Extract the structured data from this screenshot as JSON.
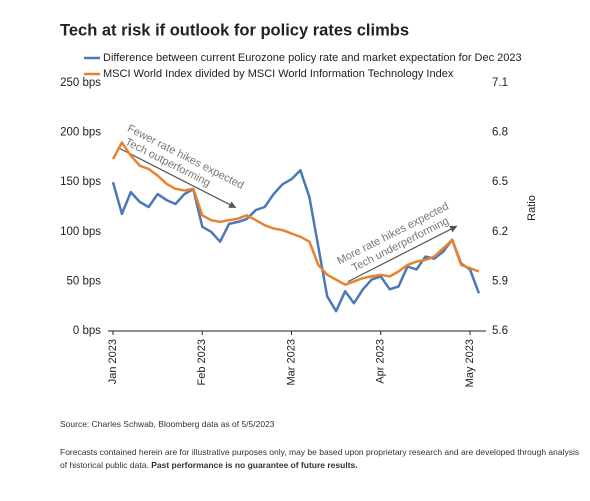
{
  "chart_data": {
    "type": "line",
    "title": "Tech at risk if outlook for policy rates climbs",
    "categories": [
      "Jan 2023",
      null,
      null,
      null,
      null,
      null,
      null,
      null,
      null,
      null,
      "Feb 2023",
      null,
      null,
      null,
      null,
      null,
      null,
      null,
      null,
      null,
      "Mar 2023",
      null,
      null,
      null,
      null,
      null,
      null,
      null,
      null,
      null,
      "Apr 2023",
      null,
      null,
      null,
      null,
      null,
      null,
      null,
      null,
      null,
      "May 2023",
      null
    ],
    "series": [
      {
        "name": "Difference between current Eurozone policy rate and market expectation for Dec 2023",
        "color": "#4a78b8",
        "values": [
          150,
          118,
          140,
          130,
          125,
          138,
          132,
          128,
          138,
          143,
          105,
          100,
          90,
          108,
          110,
          113,
          122,
          125,
          138,
          148,
          153,
          162,
          135,
          85,
          35,
          20,
          40,
          28,
          42,
          52,
          55,
          42,
          45,
          65,
          62,
          75,
          73,
          80,
          92,
          68,
          62,
          38
        ]
      },
      {
        "name": "MSCI World Index divided by MSCI World Information Technology Index",
        "color": "#e8822e",
        "axis": "y2",
        "values": [
          6.64,
          6.74,
          6.66,
          6.6,
          6.58,
          6.54,
          6.49,
          6.46,
          6.45,
          6.46,
          6.3,
          6.27,
          6.26,
          6.27,
          6.28,
          6.3,
          6.27,
          6.24,
          6.22,
          6.21,
          6.19,
          6.17,
          6.14,
          6.0,
          5.94,
          5.91,
          5.88,
          5.9,
          5.92,
          5.93,
          5.94,
          5.93,
          5.96,
          6.0,
          6.02,
          6.03,
          6.05,
          6.1,
          6.15,
          6.0,
          5.98,
          5.96
        ]
      }
    ],
    "ylim": [
      0,
      250
    ],
    "yticks": [
      {
        "value": 0,
        "label": "0 bps"
      },
      {
        "value": 50,
        "label": "50 bps"
      },
      {
        "value": 100,
        "label": "100 bps"
      },
      {
        "value": 150,
        "label": "150 bps"
      },
      {
        "value": 200,
        "label": "200 bps"
      },
      {
        "value": 250,
        "label": "250 bps"
      }
    ],
    "y2lim": [
      5.6,
      7.1
    ],
    "y2ticks": [
      5.6,
      5.9,
      6.2,
      6.5,
      6.8,
      7.1
    ],
    "y2label": "Ratio",
    "grid": false,
    "legend": "top",
    "annotations": [
      "Fewer rate hikes expected",
      "Tech outperforming",
      "More rate hikes expected",
      "Tech underperforming"
    ]
  },
  "footer": {
    "source": "Source: Charles Schwab, Bloomberg data as of 5/5/2023",
    "note": "Forecasts contained herein are for illustrative purposes only, may be based upon proprietary research and are developed through analysis of historical public data.",
    "note_bold": "Past performance is no guarantee of future results."
  }
}
